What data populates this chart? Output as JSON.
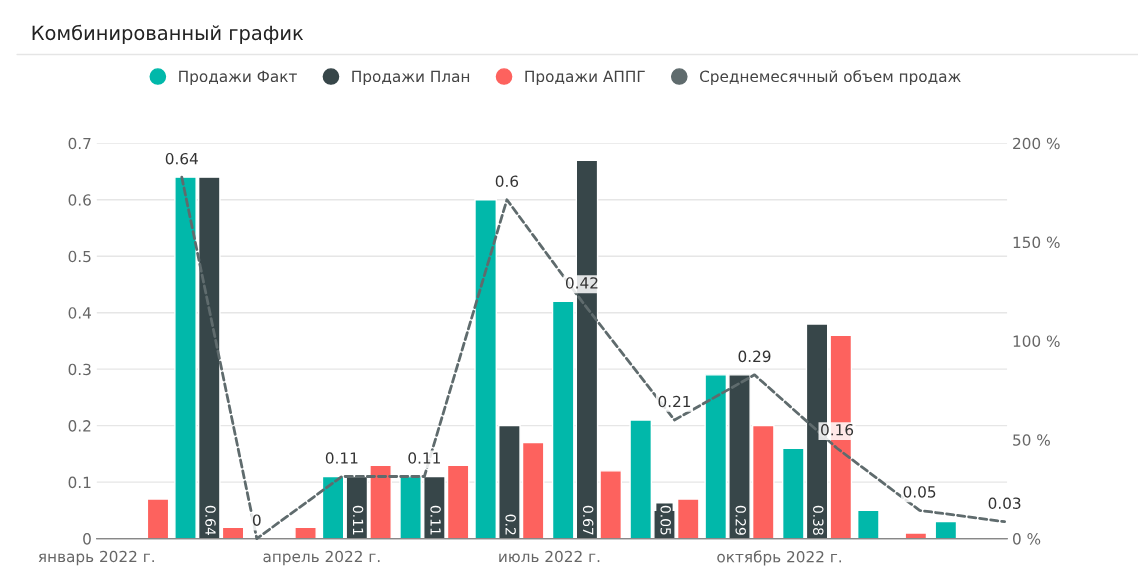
{
  "chart_data": {
    "type": "bar",
    "title": "Комбинированный график",
    "x": [
      "2022-01-16",
      "2022-02-15",
      "2022-03-16",
      "2022-04-15",
      "2022-05-16",
      "2022-06-15",
      "2022-07-16",
      "2022-08-16",
      "2022-09-15",
      "2022-10-16",
      "2022-11-15",
      "2022-12-16"
    ],
    "series": [
      {
        "name": "Продажи Факт",
        "color": "#01b8aa",
        "values": [
          null,
          0.64,
          null,
          0.11,
          0.11,
          0.6,
          0.42,
          0.21,
          0.29,
          0.16,
          0.05,
          0.03
        ]
      },
      {
        "name": "Продажи План",
        "color": "#374649",
        "values": [
          null,
          0.64,
          null,
          0.11,
          0.11,
          0.2,
          0.67,
          0.05,
          0.29,
          0.38,
          null,
          null
        ],
        "value_labels": [
          null,
          "0.64",
          null,
          "0.11",
          "0.11",
          "0.2",
          "0.67",
          "0.05",
          "0.29",
          "0.38",
          null,
          null
        ]
      },
      {
        "name": "Продажи АППГ",
        "color": "#fd625e",
        "values": [
          0.07,
          0.02,
          0.02,
          0.13,
          0.13,
          0.17,
          0.12,
          0.07,
          0.2,
          0.36,
          0.01,
          null
        ]
      },
      {
        "name": "Среднемесячный объем продаж",
        "type": "line",
        "color": "#5f6b6d",
        "line_style": "dashed",
        "marker": "none",
        "x": [
          "2022-02-04",
          "2022-03-06",
          "2022-04-09",
          "2022-05-12",
          "2022-06-14",
          "2022-07-14",
          "2022-08-20",
          "2022-09-21",
          "2022-10-24",
          "2022-11-26",
          "2022-12-30"
        ],
        "values": [
          0.64,
          0,
          0.11,
          0.11,
          0.6,
          0.42,
          0.21,
          0.29,
          0.16,
          0.05,
          0.03
        ],
        "value_labels": [
          "0.64",
          "0",
          "0.11",
          "0.11",
          "0.6",
          "0.42",
          "0.21",
          "0.29",
          "0.16",
          "0.05",
          "0.03"
        ]
      }
    ],
    "xlim": [
      "2022-01-01",
      "2022-12-31"
    ],
    "xticks": [
      {
        "value": "2022-01-01",
        "label": "январь 2022 г."
      },
      {
        "value": "2022-04-01",
        "label": "апрель 2022 г."
      },
      {
        "value": "2022-07-01",
        "label": "июль 2022 г."
      },
      {
        "value": "2022-10-01",
        "label": "октябрь 2022 г."
      }
    ],
    "ylim": [
      0,
      0.7
    ],
    "yticks": [
      0,
      0.1,
      0.2,
      0.3,
      0.4,
      0.5,
      0.6,
      0.7
    ],
    "y2lim": [
      0,
      200
    ],
    "y2ticks": [
      {
        "value": 0,
        "label": "0 %"
      },
      {
        "value": 50,
        "label": "50 %"
      },
      {
        "value": 100,
        "label": "100 %"
      },
      {
        "value": 150,
        "label": "150 %"
      },
      {
        "value": 200,
        "label": "200 %"
      }
    ],
    "grid": "y",
    "legend": "top"
  }
}
